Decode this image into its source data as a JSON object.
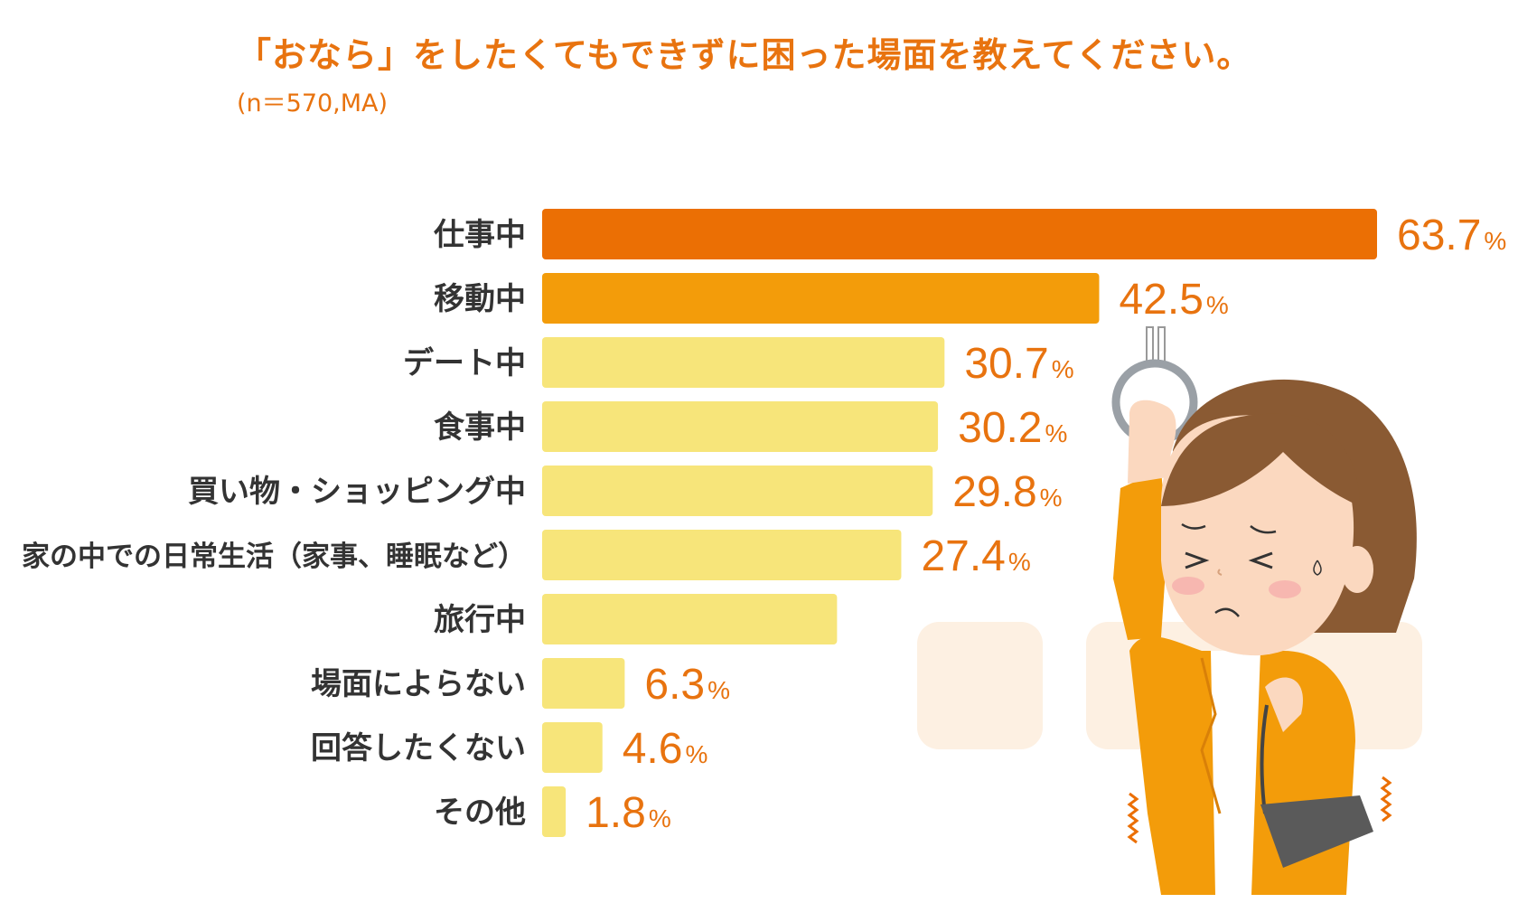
{
  "title": "「おなら」をしたくてもできずに困った場面を教えてください。",
  "subtitle": "(n＝570,MA)",
  "colors": {
    "title": "#e8730f",
    "label": "#333333",
    "value": "#e8730f",
    "bar_top": "#eb6f04",
    "bar_second": "#f39c0a",
    "bar_rest": "#f7e57a"
  },
  "chart_data": {
    "type": "bar",
    "orientation": "horizontal",
    "categories": [
      "仕事中",
      "移動中",
      "デート中",
      "食事中",
      "買い物・ショッピング中",
      "家の中での日常生活（家事、睡眠など）",
      "旅行中",
      "場面によらない",
      "回答したくない",
      "その他"
    ],
    "values": [
      63.7,
      42.5,
      30.7,
      30.2,
      29.8,
      27.4,
      22.5,
      6.3,
      4.6,
      1.8
    ],
    "value_labels": [
      "63.7",
      "42.5",
      "30.7",
      "30.2",
      "29.8",
      "27.4",
      "",
      "6.3",
      "4.6",
      "1.8"
    ],
    "unit": "%",
    "bar_colors": [
      "#eb6f04",
      "#f39c0a",
      "#f7e57a",
      "#f7e57a",
      "#f7e57a",
      "#f7e57a",
      "#f7e57a",
      "#f7e57a",
      "#f7e57a",
      "#f7e57a"
    ],
    "xlim": [
      0,
      63.7
    ],
    "grid": false,
    "legend": "none"
  },
  "illustration": {
    "icons": [
      "hand-strap-icon",
      "woman-illustration-icon",
      "handbag-icon",
      "wobble-lines-icon"
    ]
  }
}
